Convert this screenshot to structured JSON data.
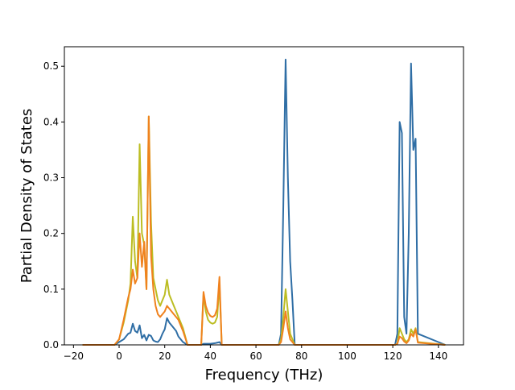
{
  "chart_data": {
    "type": "line",
    "title": "",
    "xlabel": "Frequency (THz)",
    "ylabel": "Partial Density of States",
    "xlim": [
      -24,
      151
    ],
    "ylim": [
      0,
      0.535
    ],
    "xticks": [
      -20,
      0,
      20,
      40,
      60,
      80,
      100,
      120,
      140
    ],
    "yticks": [
      0.0,
      0.1,
      0.2,
      0.3,
      0.4,
      0.5
    ],
    "xtick_labels": [
      "−20",
      "0",
      "20",
      "40",
      "60",
      "80",
      "100",
      "120",
      "140"
    ],
    "ytick_labels": [
      "0.0",
      "0.1",
      "0.2",
      "0.3",
      "0.4",
      "0.5"
    ],
    "grid": false,
    "legend": "none",
    "series": [
      {
        "color": "#2f6ea5",
        "x": [
          -16,
          -2,
          0,
          2,
          4,
          5,
          6,
          7,
          8,
          9,
          10,
          11,
          12,
          13,
          14,
          15,
          16,
          17,
          18,
          19,
          20,
          21,
          22,
          23,
          24,
          25,
          26,
          28,
          30,
          36,
          37,
          38,
          40,
          42,
          43,
          44,
          45,
          70,
          71,
          72,
          73,
          74,
          75,
          76,
          77,
          121,
          122,
          123,
          124,
          125,
          126,
          127,
          128,
          129,
          130,
          131,
          143
        ],
        "y": [
          0,
          0,
          0.005,
          0.01,
          0.02,
          0.022,
          0.038,
          0.025,
          0.022,
          0.035,
          0.012,
          0.018,
          0.008,
          0.018,
          0.016,
          0.008,
          0.006,
          0.005,
          0.01,
          0.02,
          0.028,
          0.048,
          0.04,
          0.035,
          0.03,
          0.025,
          0.015,
          0.005,
          0,
          0,
          0.002,
          0.002,
          0.002,
          0.003,
          0.004,
          0.005,
          0,
          0,
          0.02,
          0.25,
          0.512,
          0.3,
          0.15,
          0.08,
          0,
          0,
          0.02,
          0.4,
          0.38,
          0.05,
          0.02,
          0.2,
          0.505,
          0.35,
          0.37,
          0.02,
          0
        ]
      },
      {
        "color": "#bcbd22",
        "x": [
          -16,
          -2,
          0,
          2,
          4,
          5,
          6,
          7,
          8,
          9,
          10,
          11,
          12,
          13,
          14,
          15,
          16,
          17,
          18,
          19,
          20,
          21,
          22,
          23,
          24,
          25,
          26,
          28,
          30,
          36,
          37,
          38,
          39,
          40,
          41,
          42,
          43,
          44,
          45,
          70,
          71,
          72,
          73,
          74,
          75,
          76,
          77,
          121,
          122,
          123,
          124,
          125,
          126,
          127,
          128,
          129,
          130,
          131,
          143
        ],
        "y": [
          0,
          0,
          0.01,
          0.04,
          0.08,
          0.11,
          0.23,
          0.15,
          0.12,
          0.36,
          0.2,
          0.18,
          0.1,
          0.41,
          0.22,
          0.12,
          0.1,
          0.08,
          0.07,
          0.08,
          0.09,
          0.117,
          0.09,
          0.08,
          0.07,
          0.06,
          0.05,
          0.03,
          0,
          0,
          0.09,
          0.06,
          0.045,
          0.04,
          0.038,
          0.04,
          0.05,
          0.11,
          0,
          0,
          0.01,
          0.05,
          0.1,
          0.06,
          0.02,
          0.01,
          0,
          0,
          0.002,
          0.03,
          0.02,
          0.01,
          0.005,
          0.01,
          0.028,
          0.02,
          0.03,
          0.005,
          0
        ]
      },
      {
        "color": "#f0821e",
        "x": [
          -16,
          -2,
          0,
          2,
          4,
          5,
          6,
          7,
          8,
          9,
          10,
          11,
          12,
          13,
          14,
          15,
          16,
          17,
          18,
          19,
          20,
          21,
          22,
          23,
          24,
          25,
          26,
          28,
          30,
          36,
          37,
          38,
          39,
          40,
          41,
          42,
          43,
          44,
          45,
          70,
          71,
          72,
          73,
          74,
          75,
          76,
          77,
          121,
          122,
          123,
          124,
          125,
          126,
          127,
          128,
          129,
          130,
          131,
          143
        ],
        "y": [
          0,
          0,
          0.01,
          0.045,
          0.085,
          0.1,
          0.135,
          0.11,
          0.12,
          0.2,
          0.14,
          0.185,
          0.1,
          0.41,
          0.16,
          0.1,
          0.07,
          0.055,
          0.05,
          0.055,
          0.06,
          0.07,
          0.065,
          0.06,
          0.055,
          0.05,
          0.045,
          0.025,
          0,
          0,
          0.095,
          0.07,
          0.058,
          0.052,
          0.05,
          0.053,
          0.065,
          0.122,
          0,
          0,
          0.005,
          0.03,
          0.06,
          0.03,
          0.01,
          0.005,
          0,
          0,
          0.002,
          0.015,
          0.012,
          0.006,
          0.003,
          0.008,
          0.02,
          0.015,
          0.028,
          0.004,
          0
        ]
      }
    ]
  }
}
